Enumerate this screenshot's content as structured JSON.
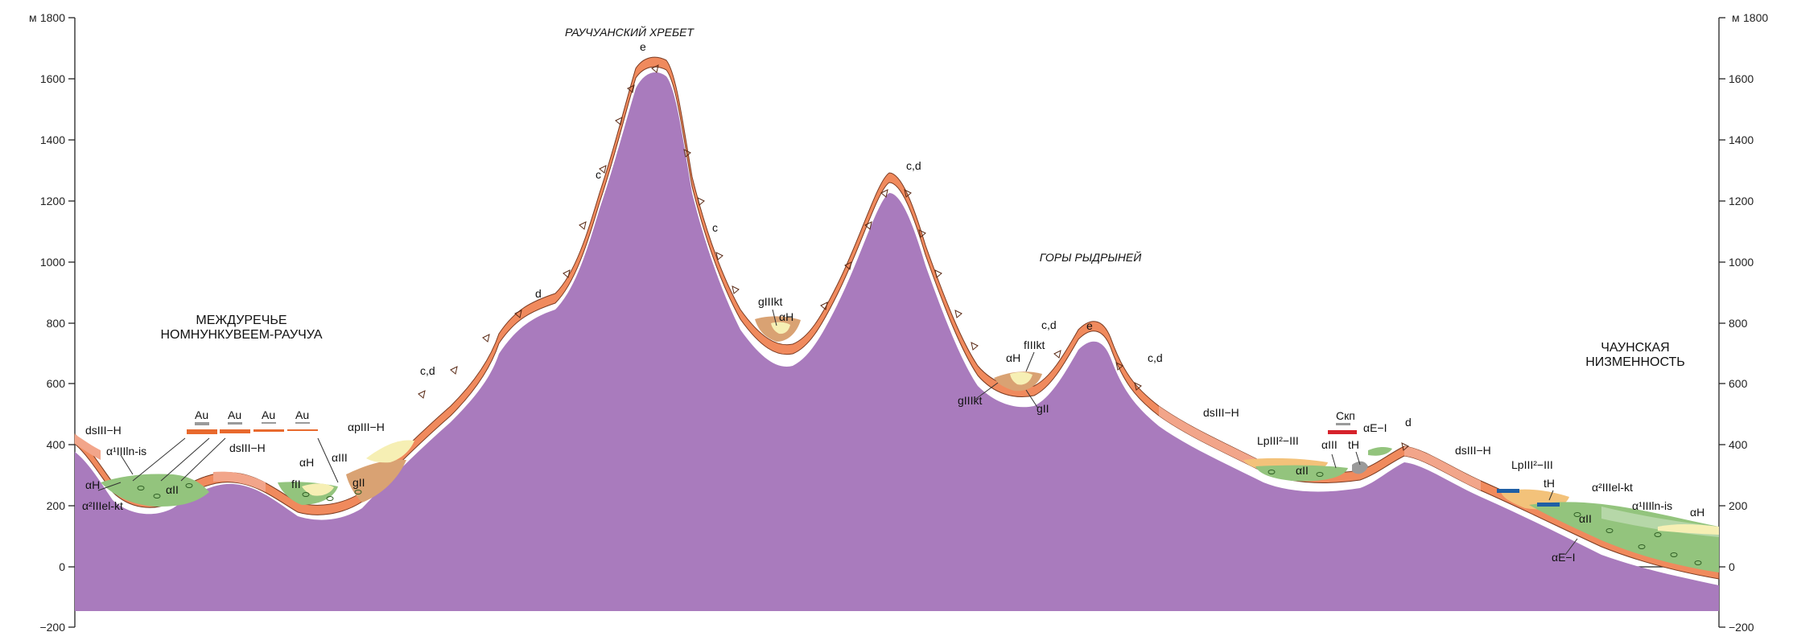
{
  "axis": {
    "unit": "м",
    "ticks": [
      "1800",
      "1600",
      "1400",
      "1200",
      "1000",
      "800",
      "600",
      "400",
      "200",
      "0",
      "−200"
    ]
  },
  "regions": [
    {
      "id": "mezhdurechye_1",
      "text": "МЕЖДУРЕЧЬЕ"
    },
    {
      "id": "mezhdurechye_2",
      "text": "НОМНУНКУВЕЕМ-РАУЧУА"
    },
    {
      "id": "rauchuan",
      "text": "РАУЧУАНСКИЙ ХРЕБЕТ"
    },
    {
      "id": "rydryney",
      "text": "ГОРЫ РЫДРЫНЕЙ"
    },
    {
      "id": "chaun_1",
      "text": "ЧАУНСКАЯ"
    },
    {
      "id": "chaun_2",
      "text": "НИЗМЕННОСТЬ"
    }
  ],
  "labels": [
    {
      "id": "l_dsIII_H_1",
      "text": "dsIII−H"
    },
    {
      "id": "l_a1IIIln_is_1",
      "text": "α¹IIIln-is"
    },
    {
      "id": "l_aH_1",
      "text": "αH"
    },
    {
      "id": "l_a2IIIel_kt_1",
      "text": "α²IIIel-kt"
    },
    {
      "id": "l_aII_1",
      "text": "αII"
    },
    {
      "id": "l_Au_1",
      "text": "Au"
    },
    {
      "id": "l_Au_2",
      "text": "Au"
    },
    {
      "id": "l_Au_3",
      "text": "Au"
    },
    {
      "id": "l_Au_4",
      "text": "Au"
    },
    {
      "id": "l_dsIII_H_2",
      "text": "dsIII−H"
    },
    {
      "id": "l_aH_2",
      "text": "αH"
    },
    {
      "id": "l_aIII_1",
      "text": "αIII"
    },
    {
      "id": "l_fII",
      "text": "fII"
    },
    {
      "id": "l_gII_1",
      "text": "gII"
    },
    {
      "id": "l_apIII_H",
      "text": "αpIII−H"
    },
    {
      "id": "l_cd_1",
      "text": "c,d"
    },
    {
      "id": "l_d_1",
      "text": "d"
    },
    {
      "id": "l_e_1",
      "text": "e"
    },
    {
      "id": "l_c_1",
      "text": "c"
    },
    {
      "id": "l_c_2",
      "text": "c"
    },
    {
      "id": "l_gIIIkt_1",
      "text": "gIIIkt"
    },
    {
      "id": "l_aH_3",
      "text": "αH"
    },
    {
      "id": "l_cd_2",
      "text": "c,d"
    },
    {
      "id": "l_cd_3",
      "text": "c,d"
    },
    {
      "id": "l_fIIIkt",
      "text": "fIIIkt"
    },
    {
      "id": "l_aH_4",
      "text": "αH"
    },
    {
      "id": "l_gIIIkt_2",
      "text": "gIIIkt"
    },
    {
      "id": "l_gII_2",
      "text": "gII"
    },
    {
      "id": "l_e_2",
      "text": "e"
    },
    {
      "id": "l_cd_4",
      "text": "c,d"
    },
    {
      "id": "l_dsIII_H_3",
      "text": "dsIII−H"
    },
    {
      "id": "l_LpIII",
      "text": "LpIII²−III"
    },
    {
      "id": "l_aIII_2",
      "text": "αIII"
    },
    {
      "id": "l_aII_2",
      "text": "αII"
    },
    {
      "id": "l_tH_1",
      "text": "tH"
    },
    {
      "id": "l_Skp",
      "text": "Скп"
    },
    {
      "id": "l_aE_I_1",
      "text": "αE−I"
    },
    {
      "id": "l_d_2",
      "text": "d"
    },
    {
      "id": "l_dsIII_H_4",
      "text": "dsIII−H"
    },
    {
      "id": "l_LpIII_2",
      "text": "LpIII²−III"
    },
    {
      "id": "l_tH_2",
      "text": "tH"
    },
    {
      "id": "l_a2IIIel_kt_2",
      "text": "α²IIIel-kt"
    },
    {
      "id": "l_a1IIIln_is_2",
      "text": "α¹IIIln-is"
    },
    {
      "id": "l_aH_5",
      "text": "αH"
    },
    {
      "id": "l_aII_3",
      "text": "αII"
    },
    {
      "id": "l_aE_I_2",
      "text": "αE−I"
    }
  ],
  "colors": {
    "bedrock": "#f08a5d",
    "bedrock_stroke": "#7a3b22",
    "weathering": "#a97bbd",
    "slope_deposits": "#f2a58a",
    "alluvium": "#93c47d",
    "alluvium_light": "#b6d7a8",
    "glacial": "#d9a273",
    "fluvioglacial": "#f6efb4",
    "lacustrine": "#f3c27a",
    "marker_orange": "#e8692d",
    "marker_red": "#d6222b",
    "marker_gray": "#9a9a9a",
    "marker_blue": "#1f5fa5"
  }
}
